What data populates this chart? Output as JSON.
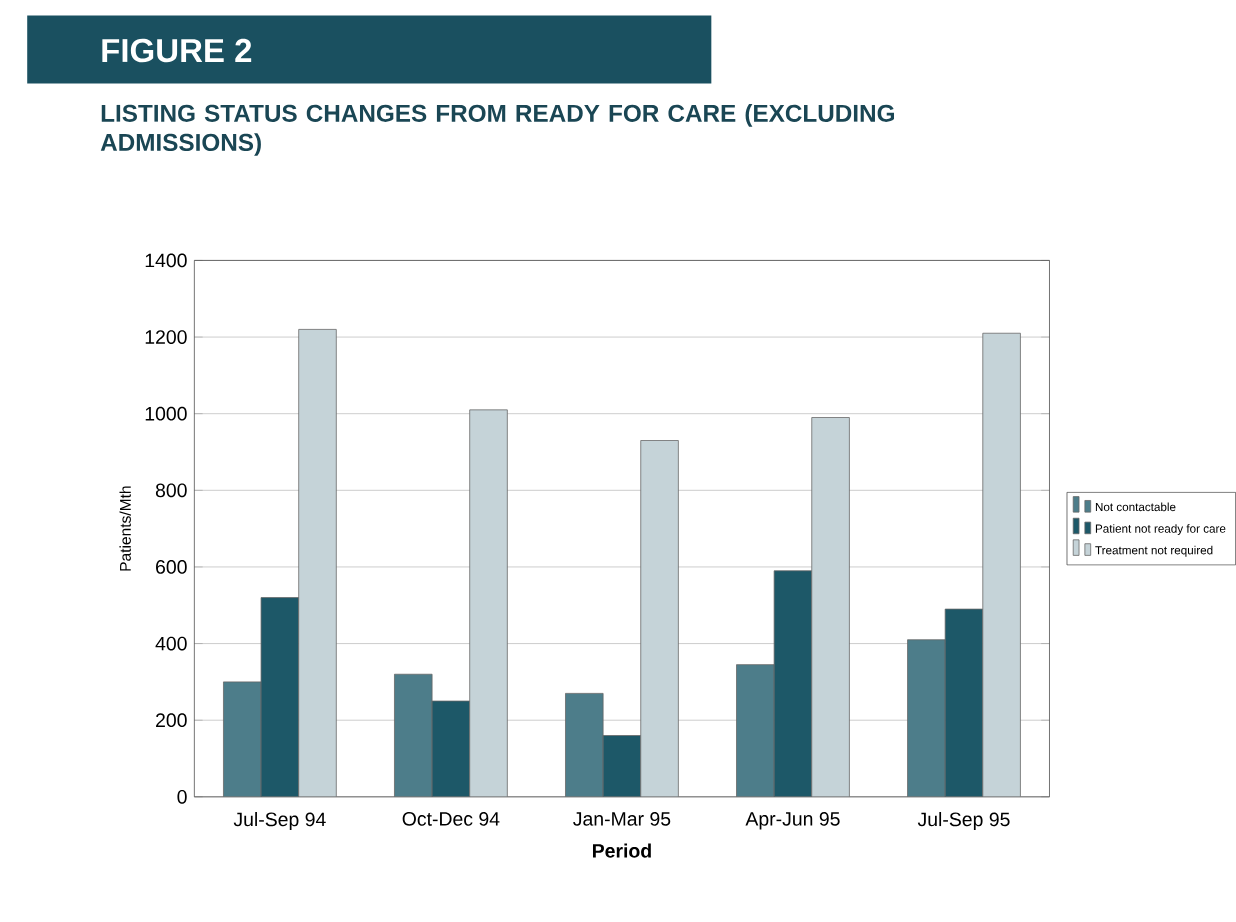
{
  "chart_data": {
    "type": "bar",
    "title": "FIGURE 2",
    "subtitle": "LISTING STATUS CHANGES FROM READY FOR CARE (EXCLUDING ADMISSIONS)",
    "xlabel": "Period",
    "ylabel": "Patients/Mth",
    "categories": [
      "Jul-Sep 94",
      "Oct-Dec 94",
      "Jan-Mar 95",
      "Apr-Jun 95",
      "Jul-Sep 95"
    ],
    "series": [
      {
        "name": "Not contactable",
        "color": "#4d7d8a",
        "values": [
          300,
          320,
          270,
          345,
          410
        ]
      },
      {
        "name": "Patient not ready for care",
        "color": "#1d5868",
        "values": [
          520,
          250,
          160,
          590,
          490
        ]
      },
      {
        "name": "Treatment not required",
        "color": "#c5d3d8",
        "values": [
          1220,
          1010,
          930,
          990,
          1210
        ]
      }
    ],
    "ylim": [
      0,
      1400
    ],
    "yticks": [
      0,
      200,
      400,
      600,
      800,
      1000,
      1200,
      1400
    ],
    "grid": "y",
    "legend": "right"
  }
}
